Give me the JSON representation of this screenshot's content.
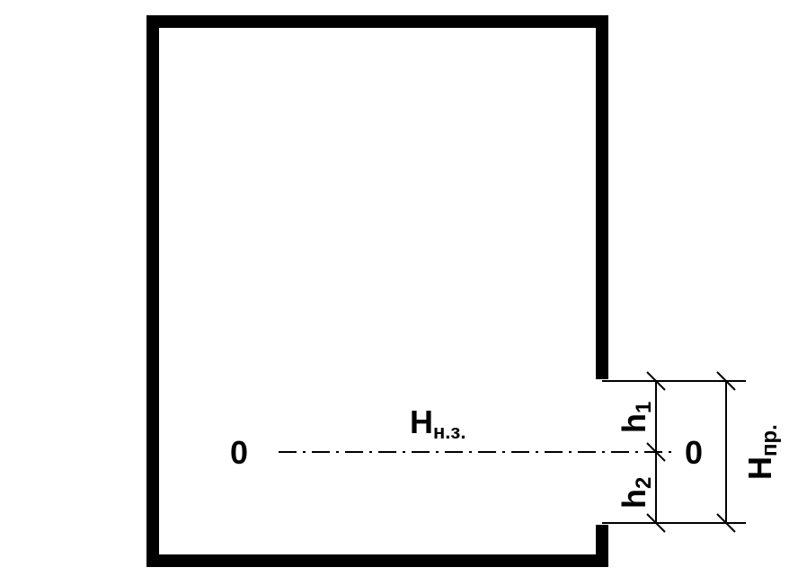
{
  "labels": {
    "zero_left": "0",
    "zero_right": "0",
    "h_nz_main": "H",
    "h_nz_sub": "н.з.",
    "h1_main": "h",
    "h1_sub": "1",
    "h2_main": "h",
    "h2_sub": "2",
    "h_pr_main": "H",
    "h_pr_sub": "пр."
  },
  "colors": {
    "line": "#000000",
    "background": "#ffffff"
  }
}
